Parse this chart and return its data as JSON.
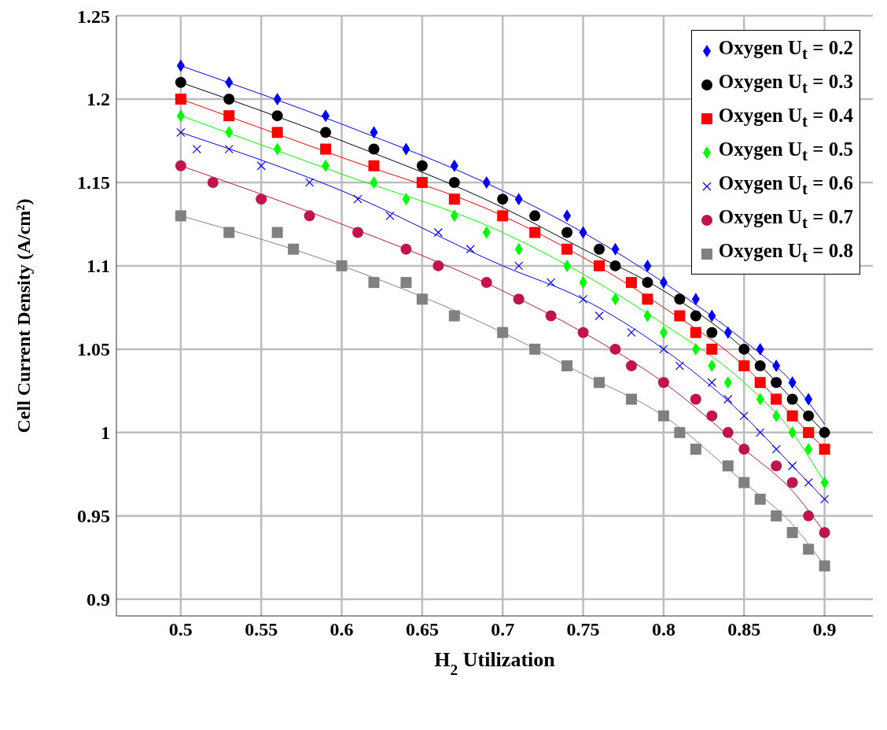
{
  "chart_data": {
    "type": "scatter",
    "xlabel": "H$_{2}$ Utilization",
    "ylabel": "Cell Current Density (A/cm²)",
    "xlim": [
      0.46,
      0.93
    ],
    "ylim": [
      0.89,
      1.25
    ],
    "xticks": [
      0.5,
      0.55,
      0.6,
      0.65,
      0.7,
      0.75,
      0.8,
      0.85,
      0.9
    ],
    "yticks": [
      0.9,
      0.95,
      1,
      1.05,
      1.1,
      1.15,
      1.2,
      1.25
    ],
    "grid": true,
    "legend": "top right",
    "series": [
      {
        "name": "Oxygen U$_{t}$ = 0.2",
        "color": "#0000ff",
        "marker": "diamond",
        "x": [
          0.5,
          0.53,
          0.56,
          0.59,
          0.62,
          0.64,
          0.67,
          0.69,
          0.71,
          0.74,
          0.75,
          0.77,
          0.79,
          0.8,
          0.82,
          0.83,
          0.84,
          0.86,
          0.87,
          0.88,
          0.89
        ],
        "values": [
          1.22,
          1.21,
          1.2,
          1.19,
          1.18,
          1.17,
          1.16,
          1.15,
          1.14,
          1.13,
          1.12,
          1.11,
          1.1,
          1.09,
          1.08,
          1.07,
          1.06,
          1.05,
          1.04,
          1.03,
          1.02
        ]
      },
      {
        "name": "Oxygen U$_{t}$ = 0.3",
        "color": "#000000",
        "marker": "circle",
        "x": [
          0.5,
          0.53,
          0.56,
          0.59,
          0.62,
          0.65,
          0.67,
          0.7,
          0.72,
          0.74,
          0.76,
          0.77,
          0.79,
          0.81,
          0.82,
          0.83,
          0.85,
          0.86,
          0.87,
          0.88,
          0.89,
          0.9
        ],
        "values": [
          1.21,
          1.2,
          1.19,
          1.18,
          1.17,
          1.16,
          1.15,
          1.14,
          1.13,
          1.12,
          1.11,
          1.1,
          1.09,
          1.08,
          1.07,
          1.06,
          1.05,
          1.04,
          1.03,
          1.02,
          1.01,
          1.0
        ]
      },
      {
        "name": "Oxygen U$_{t}$ = 0.4",
        "color": "#ff0000",
        "marker": "square",
        "x": [
          0.5,
          0.53,
          0.56,
          0.59,
          0.62,
          0.65,
          0.67,
          0.7,
          0.72,
          0.74,
          0.76,
          0.78,
          0.79,
          0.81,
          0.82,
          0.83,
          0.85,
          0.86,
          0.87,
          0.88,
          0.89,
          0.9
        ],
        "values": [
          1.2,
          1.19,
          1.18,
          1.17,
          1.16,
          1.15,
          1.14,
          1.13,
          1.12,
          1.11,
          1.1,
          1.09,
          1.08,
          1.07,
          1.06,
          1.05,
          1.04,
          1.03,
          1.02,
          1.01,
          1.0,
          0.99
        ]
      },
      {
        "name": "Oxygen U$_{t}$ = 0.5",
        "color": "#00ff00",
        "marker": "diamond",
        "x": [
          0.5,
          0.53,
          0.56,
          0.59,
          0.62,
          0.64,
          0.67,
          0.69,
          0.71,
          0.74,
          0.75,
          0.77,
          0.79,
          0.8,
          0.82,
          0.83,
          0.84,
          0.86,
          0.87,
          0.88,
          0.89,
          0.9
        ],
        "values": [
          1.19,
          1.18,
          1.17,
          1.16,
          1.15,
          1.14,
          1.13,
          1.12,
          1.11,
          1.1,
          1.09,
          1.08,
          1.07,
          1.06,
          1.05,
          1.04,
          1.03,
          1.02,
          1.01,
          1.0,
          0.99,
          0.97
        ]
      },
      {
        "name": "Oxygen U$_{t}$ = 0.6",
        "color": "#0000ff",
        "marker": "cross",
        "x": [
          0.5,
          0.51,
          0.53,
          0.55,
          0.58,
          0.61,
          0.63,
          0.66,
          0.68,
          0.71,
          0.73,
          0.75,
          0.76,
          0.78,
          0.8,
          0.81,
          0.83,
          0.84,
          0.85,
          0.86,
          0.87,
          0.88,
          0.89,
          0.9
        ],
        "values": [
          1.18,
          1.17,
          1.17,
          1.16,
          1.15,
          1.14,
          1.13,
          1.12,
          1.11,
          1.1,
          1.09,
          1.08,
          1.07,
          1.06,
          1.05,
          1.04,
          1.03,
          1.02,
          1.01,
          1.0,
          0.99,
          0.98,
          0.97,
          0.96
        ]
      },
      {
        "name": "Oxygen U$_{t}$ = 0.7",
        "color": "#c0144a",
        "marker": "circle",
        "x": [
          0.5,
          0.52,
          0.55,
          0.58,
          0.61,
          0.64,
          0.66,
          0.69,
          0.71,
          0.73,
          0.75,
          0.77,
          0.78,
          0.8,
          0.82,
          0.83,
          0.84,
          0.85,
          0.87,
          0.88,
          0.89,
          0.9
        ],
        "values": [
          1.16,
          1.15,
          1.14,
          1.13,
          1.12,
          1.11,
          1.1,
          1.09,
          1.08,
          1.07,
          1.06,
          1.05,
          1.04,
          1.03,
          1.02,
          1.01,
          1.0,
          0.99,
          0.98,
          0.97,
          0.95,
          0.94
        ]
      },
      {
        "name": "Oxygen U$_{t}$ = 0.8",
        "color": "#808080",
        "marker": "square",
        "x": [
          0.5,
          0.53,
          0.56,
          0.57,
          0.6,
          0.62,
          0.64,
          0.65,
          0.67,
          0.7,
          0.72,
          0.74,
          0.76,
          0.78,
          0.8,
          0.81,
          0.82,
          0.84,
          0.85,
          0.86,
          0.87,
          0.88,
          0.89,
          0.9
        ],
        "values": [
          1.13,
          1.12,
          1.12,
          1.11,
          1.1,
          1.09,
          1.09,
          1.08,
          1.07,
          1.06,
          1.05,
          1.04,
          1.03,
          1.02,
          1.01,
          1.0,
          0.99,
          0.98,
          0.97,
          0.96,
          0.95,
          0.94,
          0.93,
          0.92
        ]
      },
      {
        "type": "line",
        "color": "#0000ff",
        "marker": "none",
        "x": [
          0.5,
          0.6,
          0.7,
          0.75,
          0.8,
          0.85,
          0.88,
          0.9
        ],
        "values": [
          1.22,
          1.185,
          1.145,
          1.12,
          1.09,
          1.055,
          1.03,
          1.005
        ]
      },
      {
        "type": "line",
        "color": "#000000",
        "marker": "none",
        "x": [
          0.5,
          0.6,
          0.7,
          0.75,
          0.8,
          0.85,
          0.88,
          0.9
        ],
        "values": [
          1.21,
          1.175,
          1.135,
          1.11,
          1.085,
          1.05,
          1.02,
          1.0
        ]
      },
      {
        "type": "line",
        "color": "#ff0000",
        "marker": "none",
        "x": [
          0.5,
          0.6,
          0.7,
          0.75,
          0.8,
          0.85,
          0.88,
          0.9
        ],
        "values": [
          1.2,
          1.165,
          1.13,
          1.105,
          1.075,
          1.04,
          1.01,
          0.99
        ]
      },
      {
        "type": "line",
        "color": "#00ff00",
        "marker": "none",
        "x": [
          0.5,
          0.6,
          0.7,
          0.75,
          0.8,
          0.85,
          0.88,
          0.9
        ],
        "values": [
          1.19,
          1.155,
          1.12,
          1.095,
          1.065,
          1.03,
          1.0,
          0.97
        ]
      },
      {
        "type": "line",
        "color": "#0000ff",
        "marker": "none",
        "x": [
          0.5,
          0.6,
          0.7,
          0.75,
          0.8,
          0.85,
          0.88,
          0.9
        ],
        "values": [
          1.18,
          1.145,
          1.1,
          1.08,
          1.05,
          1.01,
          0.98,
          0.96
        ]
      },
      {
        "type": "line",
        "color": "#c0144a",
        "marker": "none",
        "x": [
          0.5,
          0.6,
          0.7,
          0.75,
          0.8,
          0.85,
          0.88,
          0.9
        ],
        "values": [
          1.16,
          1.125,
          1.085,
          1.06,
          1.03,
          0.99,
          0.965,
          0.94
        ]
      },
      {
        "type": "line",
        "color": "#808080",
        "marker": "none",
        "x": [
          0.5,
          0.6,
          0.7,
          0.75,
          0.8,
          0.85,
          0.88,
          0.9
        ],
        "values": [
          1.13,
          1.1,
          1.06,
          1.035,
          1.01,
          0.97,
          0.945,
          0.92
        ]
      }
    ]
  }
}
